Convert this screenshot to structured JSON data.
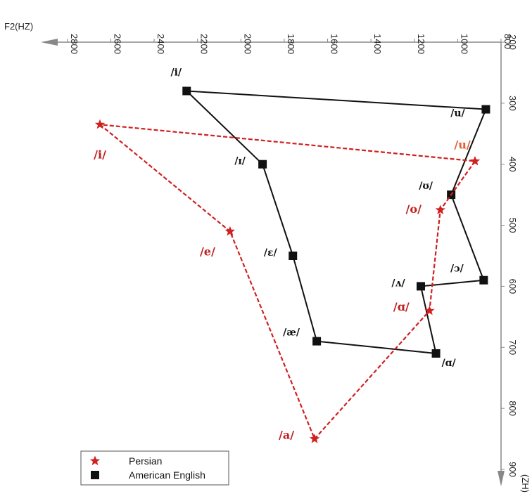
{
  "chart_data": {
    "type": "scatter",
    "title": "",
    "x_label": "F2(HZ)",
    "y_label": "(ZH)",
    "x_range": [
      2900,
      800
    ],
    "y_range": [
      200,
      900
    ],
    "x_ticks": [
      "2800",
      "2600",
      "2400",
      "2200",
      "2000",
      "1800",
      "1600",
      "1400",
      "1200",
      "1000",
      "800"
    ],
    "y_ticks": [
      "200",
      "300",
      "400",
      "500",
      "600",
      "700",
      "800",
      "900"
    ],
    "legend_position": "bottom-left",
    "series": [
      {
        "name": "American English",
        "color": "#111111",
        "marker": "square",
        "line": "solid",
        "points": [
          {
            "label": "/i/",
            "f2": 2250,
            "f1": 280
          },
          {
            "label": "/ɪ/",
            "f2": 1900,
            "f1": 400
          },
          {
            "label": "/ɛ/",
            "f2": 1760,
            "f1": 550
          },
          {
            "label": "/æ/",
            "f2": 1650,
            "f1": 690
          },
          {
            "label": "/ɑ/",
            "f2": 1100,
            "f1": 710
          },
          {
            "label": "/ʌ/",
            "f2": 1170,
            "f1": 600
          },
          {
            "label": "/ɔ/",
            "f2": 880,
            "f1": 590
          },
          {
            "label": "/ʊ/",
            "f2": 1030,
            "f1": 450
          },
          {
            "label": "/u/",
            "f2": 870,
            "f1": 310
          }
        ]
      },
      {
        "name": "Persian",
        "color": "#d02020",
        "marker": "star",
        "line": "dashed",
        "points": [
          {
            "label": "/i/",
            "f2": 2650,
            "f1": 335
          },
          {
            "label": "/e/",
            "f2": 2050,
            "f1": 510
          },
          {
            "label": "/a/",
            "f2": 1660,
            "f1": 850
          },
          {
            "label": "/ɑ/",
            "f2": 1130,
            "f1": 640
          },
          {
            "label": "/o/",
            "f2": 1080,
            "f1": 475
          },
          {
            "label": "/u/",
            "f2": 920,
            "f1": 395
          }
        ]
      }
    ]
  }
}
